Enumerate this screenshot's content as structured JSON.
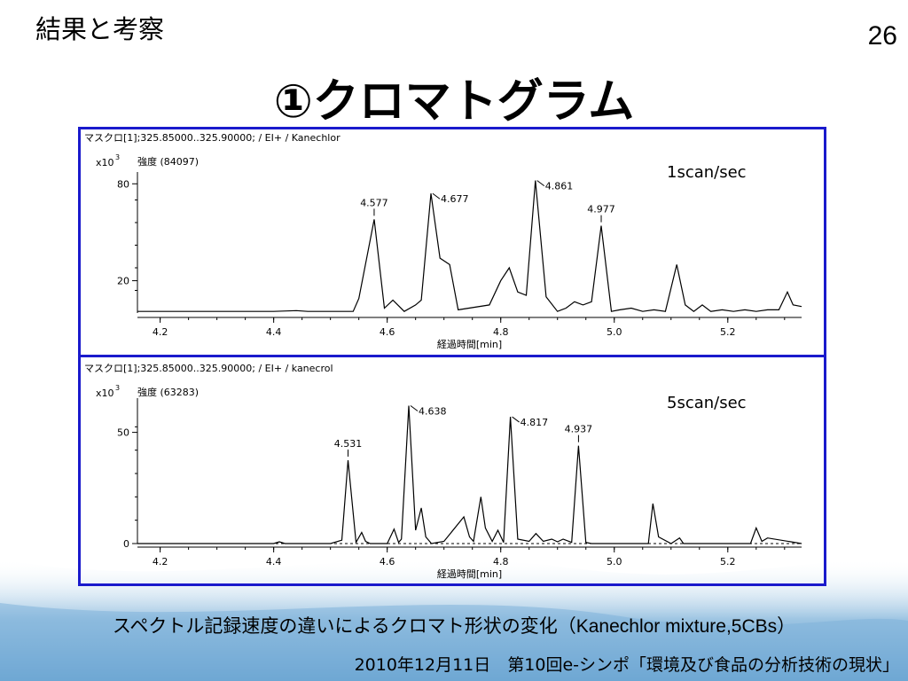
{
  "header": {
    "title": "結果と考察",
    "page_number": "26"
  },
  "slide_title": "①クロマトグラム",
  "caption_ja": "スペクトル記録速度の違いによるクロマト形状の変化（",
  "caption_en": "Kanechlor mixture,5CBs）",
  "footer": "2010年12月11日　第10回e-シンポ「環境及び食品の分析技術の現状」",
  "colors": {
    "frame": "#1a1acc",
    "trace": "#000000",
    "wave": "#6aa8d2"
  },
  "chart_data": [
    {
      "type": "line",
      "header_text": "マスクロ[1];325.85000..325.90000; / EI+ / Kanechlor",
      "intensity_label": "強度 (84097)",
      "y_multiplier": "x10",
      "y_multiplier_exp": "3",
      "scan_label": "1scan/sec",
      "xlabel": "経過時間[min]",
      "xlim": [
        4.16,
        5.33
      ],
      "ylim": [
        0,
        84
      ],
      "x_ticks": [
        "4.2",
        "4.4",
        "4.6",
        "4.8",
        "5.0",
        "5.2"
      ],
      "y_ticks": [
        "80",
        "20"
      ],
      "peaks": [
        {
          "label": "4.577",
          "x": 4.577,
          "y": 58
        },
        {
          "label": "4.677",
          "x": 4.677,
          "y": 74
        },
        {
          "label": "4.861",
          "x": 4.861,
          "y": 82
        },
        {
          "label": "4.977",
          "x": 4.977,
          "y": 54
        }
      ],
      "series": [
        {
          "x": [
            4.16,
            4.3,
            4.4,
            4.44,
            4.46,
            4.5,
            4.54,
            4.55,
            4.577,
            4.595,
            4.61,
            4.63,
            4.65,
            4.66,
            4.677,
            4.693,
            4.71,
            4.725,
            4.78,
            4.8,
            4.815,
            4.83,
            4.845,
            4.861,
            4.88,
            4.9,
            4.915,
            4.93,
            4.945,
            4.96,
            4.977,
            4.995,
            5.01,
            5.03,
            5.05,
            5.07,
            5.09,
            5.11,
            5.125,
            5.14,
            5.155,
            5.17,
            5.19,
            5.21,
            5.23,
            5.25,
            5.27,
            5.29,
            5.305,
            5.315,
            5.33
          ],
          "y": [
            1,
            1,
            1,
            1.5,
            1,
            1,
            1,
            9,
            58,
            3,
            8,
            1,
            5,
            8,
            74,
            34,
            30,
            2,
            5,
            20,
            28,
            13,
            11,
            82,
            10,
            1,
            3,
            7,
            5,
            7,
            54,
            1,
            2,
            3,
            1,
            2,
            1,
            30,
            5,
            1,
            5,
            1,
            2,
            1,
            2,
            1,
            2,
            2,
            13,
            5,
            4
          ]
        }
      ]
    },
    {
      "type": "line",
      "header_text": "マスクロ[1];325.85000..325.90000; / EI+ / kanecrol",
      "intensity_label": "強度 (63283)",
      "y_multiplier": "x10",
      "y_multiplier_exp": "3",
      "scan_label": "5scan/sec",
      "xlabel": "経過時間[min]",
      "xlim": [
        4.16,
        5.33
      ],
      "ylim": [
        0,
        63
      ],
      "x_ticks": [
        "4.2",
        "4.4",
        "4.6",
        "4.8",
        "5.0",
        "5.2"
      ],
      "y_ticks": [
        "50",
        "0"
      ],
      "peaks": [
        {
          "label": "4.531",
          "x": 4.531,
          "y": 37.5
        },
        {
          "label": "4.638",
          "x": 4.638,
          "y": 62
        },
        {
          "label": "4.817",
          "x": 4.817,
          "y": 57
        },
        {
          "label": "4.937",
          "x": 4.937,
          "y": 44
        }
      ],
      "series": [
        {
          "x": [
            4.16,
            4.4,
            4.41,
            4.42,
            4.5,
            4.52,
            4.531,
            4.545,
            4.555,
            4.562,
            4.57,
            4.6,
            4.612,
            4.62,
            4.625,
            4.638,
            4.65,
            4.66,
            4.668,
            4.678,
            4.7,
            4.735,
            4.745,
            4.752,
            4.765,
            4.773,
            4.785,
            4.795,
            4.805,
            4.817,
            4.83,
            4.85,
            4.862,
            4.875,
            4.89,
            4.9,
            4.91,
            4.925,
            4.937,
            4.95,
            4.96,
            5.06,
            5.068,
            5.078,
            5.1,
            5.115,
            5.122,
            5.14,
            5.24,
            5.25,
            5.26,
            5.27,
            5.33
          ],
          "y": [
            0,
            0,
            0.8,
            0,
            0,
            1.5,
            37.5,
            0.5,
            5,
            1,
            0,
            0,
            6.5,
            0.5,
            2,
            62,
            6,
            16,
            3,
            0,
            1,
            12,
            3,
            1,
            21,
            7,
            1,
            6,
            0.5,
            57,
            2,
            1,
            4.5,
            1,
            2,
            0.8,
            2,
            0.5,
            44,
            0.5,
            0,
            0,
            18,
            3,
            0,
            2.5,
            0,
            0,
            0,
            7,
            1,
            2.5,
            0
          ]
        }
      ]
    }
  ]
}
